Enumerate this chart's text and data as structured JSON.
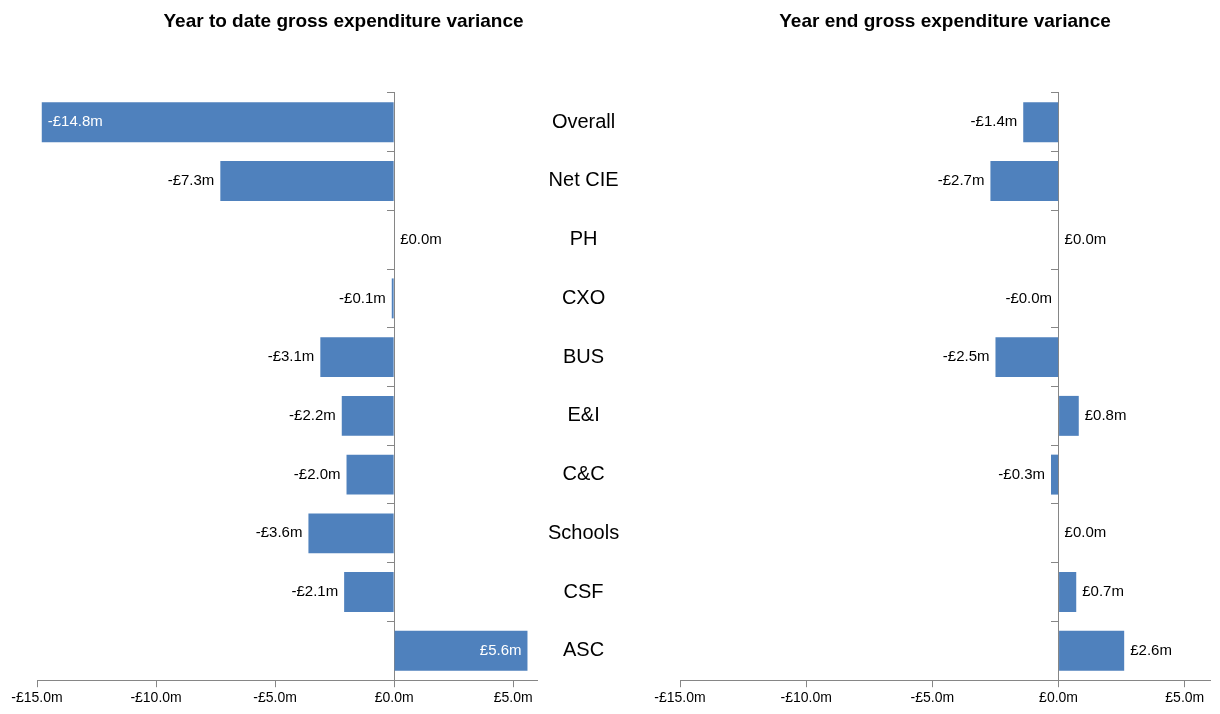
{
  "chart_data": [
    {
      "type": "bar",
      "orientation": "horizontal",
      "title": "Year to date gross expenditure variance",
      "categories": [
        "Overall",
        "Net CIE",
        "PH",
        "CXO",
        "BUS",
        "E&I",
        "C&C",
        "Schools",
        "CSF",
        "ASC"
      ],
      "values": [
        -14.8,
        -7.3,
        0.0,
        -0.1,
        -3.1,
        -2.2,
        -2.0,
        -3.6,
        -2.1,
        5.6
      ],
      "value_labels": [
        "-£14.8m",
        "-£7.3m",
        "£0.0m",
        "-£0.1m",
        "-£3.1m",
        "-£2.2m",
        "-£2.0m",
        "-£3.6m",
        "-£2.1m",
        "£5.6m"
      ],
      "color": "#4f81bd",
      "xlim": [
        -15,
        6
      ],
      "xticks": [
        {
          "value": -15,
          "label": "-£15.0m"
        },
        {
          "value": -10,
          "label": "-£10.0m"
        },
        {
          "value": -5,
          "label": "-£5.0m"
        },
        {
          "value": 0,
          "label": "£0.0m"
        },
        {
          "value": 5,
          "label": "£5.0m"
        }
      ]
    },
    {
      "type": "bar",
      "orientation": "horizontal",
      "title": "Year end gross expenditure variance",
      "categories": [
        null,
        null,
        null,
        null,
        null,
        null,
        null,
        null,
        null,
        null
      ],
      "values": [
        -1.4,
        -2.7,
        0.0,
        -0.02,
        -2.5,
        0.8,
        -0.3,
        0.0,
        0.7,
        2.6
      ],
      "value_labels": [
        "-£1.4m",
        "-£2.7m",
        "£0.0m",
        "-£0.0m",
        "-£2.5m",
        "£0.8m",
        "-£0.3m",
        "£0.0m",
        "£0.7m",
        "£2.6m"
      ],
      "color": "#4f81bd",
      "xlim": [
        -15,
        6
      ],
      "xticks": [
        {
          "value": -15,
          "label": "-£15.0m"
        },
        {
          "value": -10,
          "label": "-£10.0m"
        },
        {
          "value": -5,
          "label": "-£5.0m"
        },
        {
          "value": 0,
          "label": "£0.0m"
        },
        {
          "value": 5,
          "label": "£5.0m"
        }
      ],
      "tick_labels": "x"
    }
  ]
}
